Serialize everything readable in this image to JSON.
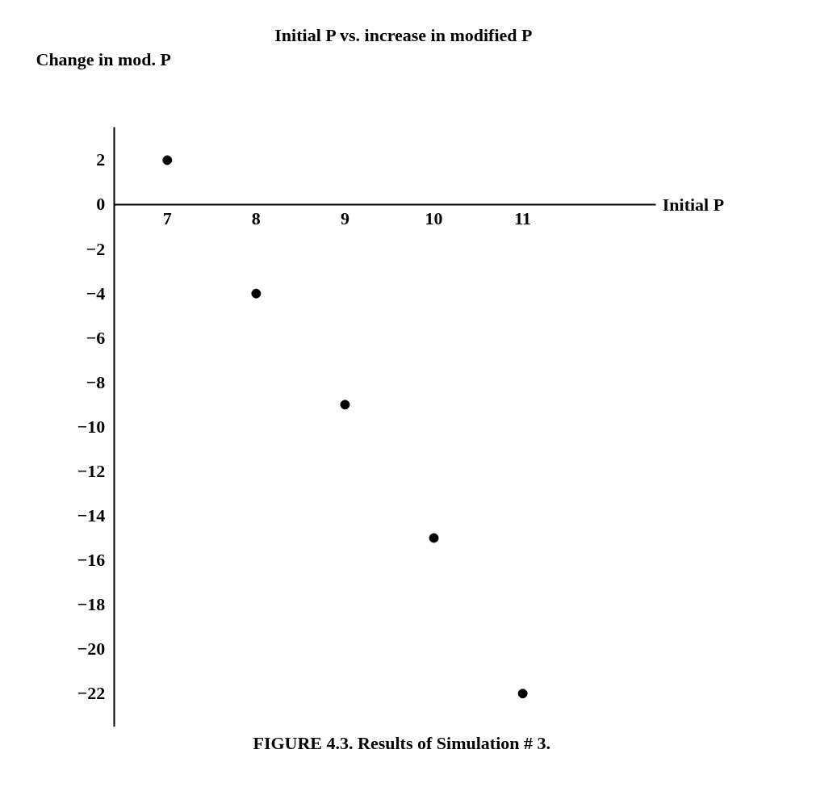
{
  "chart_data": {
    "type": "scatter",
    "title": "Initial P vs. increase in modified P",
    "xlabel": "Initial P",
    "ylabel": "Change in mod. P",
    "annotations": [
      "FIGURE 4.3.  Results of Simulation # 3."
    ],
    "x": [
      7,
      8,
      9,
      10,
      11
    ],
    "series": [
      {
        "color": "#000000",
        "values": [
          2,
          -4,
          -9,
          -15,
          -22
        ]
      }
    ],
    "xlim": [
      6.4,
      12.5
    ],
    "xticks": [
      7,
      8,
      9,
      10,
      11
    ],
    "ylim": [
      -23.5,
      3.5
    ],
    "yticks": [
      2,
      0,
      -2,
      -4,
      -6,
      -8,
      -10,
      -12,
      -14,
      -16,
      -18,
      -20,
      -22
    ],
    "grid": false,
    "marker": "circle"
  }
}
